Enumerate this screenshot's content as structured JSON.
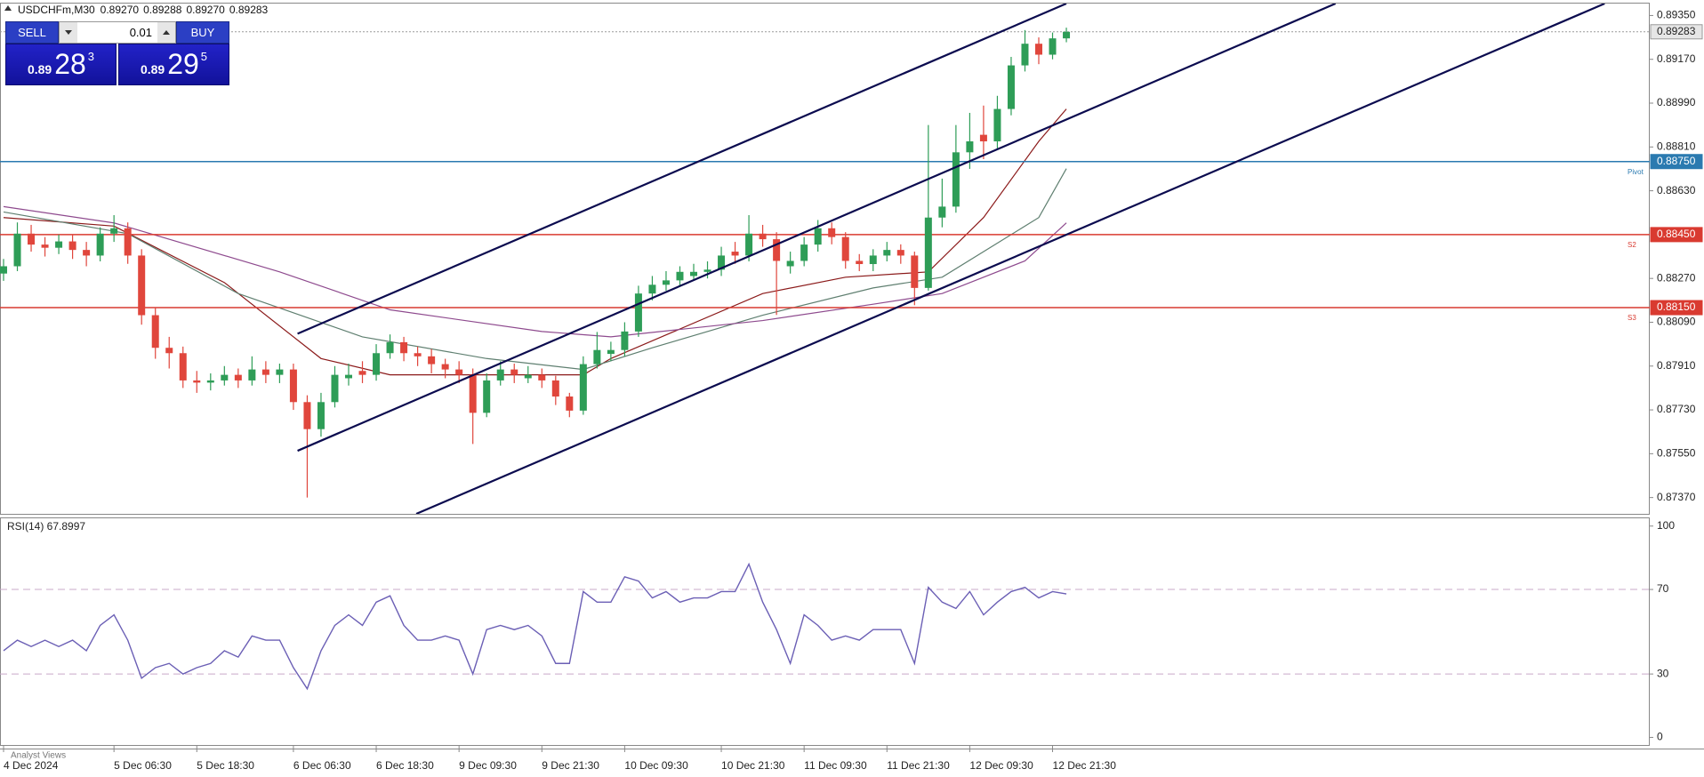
{
  "header": {
    "quote": [
      "0.89270",
      "0.89288",
      "0.89270",
      "0.89283"
    ],
    "trade": {
      "sell": "SELL",
      "buy": "BUY",
      "lot": "0.01",
      "bid": [
        "0.89",
        "28",
        "3"
      ],
      "ask": [
        "0.89",
        "29",
        "5"
      ]
    },
    "footer": "Analyst Views"
  },
  "chart_data": [
    {
      "type": "candlestick",
      "title": "USDCHFm,M30",
      "categories": [
        "4 Dec 2024",
        null,
        null,
        null,
        null,
        null,
        null,
        null,
        "5 Dec 06:30",
        null,
        null,
        null,
        null,
        null,
        "5 Dec 18:30",
        null,
        null,
        null,
        null,
        null,
        null,
        "6 Dec 06:30",
        null,
        null,
        null,
        null,
        null,
        "6 Dec 18:30",
        null,
        null,
        null,
        null,
        null,
        "9 Dec 09:30",
        null,
        null,
        null,
        null,
        null,
        "9 Dec 21:30",
        null,
        null,
        null,
        null,
        null,
        "10 Dec 09:30",
        null,
        null,
        null,
        null,
        null,
        null,
        "10 Dec 21:30",
        null,
        null,
        null,
        null,
        null,
        "11 Dec 09:30",
        null,
        null,
        null,
        null,
        null,
        "11 Dec 21:30",
        null,
        null,
        null,
        null,
        null,
        "12 Dec 09:30",
        null,
        null,
        null,
        null,
        null,
        "12 Dec 21:30",
        null
      ],
      "candles": [
        [
          0.8829,
          0.8835,
          0.8826,
          0.8832
        ],
        [
          0.8832,
          0.885,
          0.883,
          0.88454
        ],
        [
          0.88454,
          0.8849,
          0.8838,
          0.88409
        ],
        [
          0.88409,
          0.8844,
          0.8836,
          0.88396
        ],
        [
          0.88396,
          0.8845,
          0.8837,
          0.88422
        ],
        [
          0.88422,
          0.8845,
          0.8835,
          0.88387
        ],
        [
          0.88387,
          0.8842,
          0.8832,
          0.88364
        ],
        [
          0.88364,
          0.8848,
          0.8834,
          0.88454
        ],
        [
          0.88454,
          0.8853,
          0.8842,
          0.88476
        ],
        [
          0.88476,
          0.885,
          0.8833,
          0.88364
        ],
        [
          0.88364,
          0.8839,
          0.8808,
          0.88119
        ],
        [
          0.88119,
          0.8815,
          0.8794,
          0.87985
        ],
        [
          0.87985,
          0.8803,
          0.879,
          0.87963
        ],
        [
          0.87963,
          0.8799,
          0.8782,
          0.87851
        ],
        [
          0.87851,
          0.8789,
          0.878,
          0.87842
        ],
        [
          0.87842,
          0.8788,
          0.8781,
          0.87851
        ],
        [
          0.87851,
          0.8791,
          0.8783,
          0.87874
        ],
        [
          0.87874,
          0.879,
          0.8782,
          0.87851
        ],
        [
          0.87851,
          0.8795,
          0.8783,
          0.87896
        ],
        [
          0.87896,
          0.8793,
          0.8784,
          0.87874
        ],
        [
          0.87874,
          0.8792,
          0.8784,
          0.87896
        ],
        [
          0.87896,
          0.8792,
          0.8773,
          0.87762
        ],
        [
          0.87762,
          0.8779,
          0.8737,
          0.87651
        ],
        [
          0.87651,
          0.878,
          0.8762,
          0.87762
        ],
        [
          0.87762,
          0.8791,
          0.8774,
          0.87874
        ],
        [
          0.8786,
          0.8792,
          0.8783,
          0.87874
        ],
        [
          0.8789,
          0.8793,
          0.8784,
          0.87874
        ],
        [
          0.87874,
          0.88,
          0.8785,
          0.87963
        ],
        [
          0.87963,
          0.8804,
          0.8794,
          0.88008
        ],
        [
          0.88008,
          0.8803,
          0.8793,
          0.87963
        ],
        [
          0.87963,
          0.8799,
          0.8791,
          0.8795
        ],
        [
          0.8795,
          0.8798,
          0.8788,
          0.87918
        ],
        [
          0.87918,
          0.8794,
          0.8786,
          0.87896
        ],
        [
          0.87896,
          0.8793,
          0.8784,
          0.87874
        ],
        [
          0.87874,
          0.879,
          0.8759,
          0.87718
        ],
        [
          0.87718,
          0.8788,
          0.877,
          0.87851
        ],
        [
          0.87851,
          0.8793,
          0.8783,
          0.87896
        ],
        [
          0.87896,
          0.8792,
          0.8784,
          0.87874
        ],
        [
          0.8786,
          0.8791,
          0.8784,
          0.87874
        ],
        [
          0.87874,
          0.879,
          0.8782,
          0.87851
        ],
        [
          0.87851,
          0.8787,
          0.8775,
          0.87785
        ],
        [
          0.87785,
          0.878,
          0.877,
          0.87727
        ],
        [
          0.87727,
          0.8795,
          0.8771,
          0.87918
        ],
        [
          0.87918,
          0.8805,
          0.879,
          0.87976
        ],
        [
          0.8796,
          0.8801,
          0.8793,
          0.87976
        ],
        [
          0.87976,
          0.8809,
          0.8795,
          0.88052
        ],
        [
          0.88052,
          0.8824,
          0.8803,
          0.88208
        ],
        [
          0.88208,
          0.8828,
          0.8818,
          0.88244
        ],
        [
          0.88244,
          0.883,
          0.8822,
          0.88262
        ],
        [
          0.88262,
          0.8832,
          0.8824,
          0.88297
        ],
        [
          0.8828,
          0.8833,
          0.8826,
          0.88297
        ],
        [
          0.88297,
          0.8834,
          0.8827,
          0.88306
        ],
        [
          0.88306,
          0.884,
          0.8828,
          0.88364
        ],
        [
          0.8838,
          0.8842,
          0.8833,
          0.88364
        ],
        [
          0.88364,
          0.8853,
          0.8834,
          0.88454
        ],
        [
          0.88454,
          0.8849,
          0.884,
          0.88431
        ],
        [
          0.88431,
          0.8846,
          0.8812,
          0.88342
        ],
        [
          0.8832,
          0.8838,
          0.8829,
          0.88342
        ],
        [
          0.88342,
          0.8844,
          0.8832,
          0.88409
        ],
        [
          0.88409,
          0.8851,
          0.8838,
          0.88476
        ],
        [
          0.88476,
          0.885,
          0.8841,
          0.8844
        ],
        [
          0.8844,
          0.8846,
          0.8831,
          0.88342
        ],
        [
          0.88342,
          0.8837,
          0.883,
          0.88329
        ],
        [
          0.88329,
          0.8839,
          0.883,
          0.88364
        ],
        [
          0.88364,
          0.8842,
          0.8834,
          0.88387
        ],
        [
          0.88387,
          0.8841,
          0.8833,
          0.88364
        ],
        [
          0.88364,
          0.8838,
          0.8816,
          0.88231
        ],
        [
          0.88231,
          0.889,
          0.8822,
          0.8852
        ],
        [
          0.8852,
          0.8868,
          0.8848,
          0.88565
        ],
        [
          0.88565,
          0.889,
          0.8854,
          0.88788
        ],
        [
          0.88788,
          0.8895,
          0.8872,
          0.88833
        ],
        [
          0.8886,
          0.8898,
          0.8876,
          0.88833
        ],
        [
          0.88833,
          0.8902,
          0.888,
          0.88966
        ],
        [
          0.88966,
          0.8918,
          0.8894,
          0.89145
        ],
        [
          0.89145,
          0.8929,
          0.8912,
          0.89234
        ],
        [
          0.89234,
          0.8926,
          0.8915,
          0.89189
        ],
        [
          0.89189,
          0.8928,
          0.8917,
          0.89256
        ],
        [
          0.89256,
          0.893,
          0.8924,
          0.89283
        ]
      ],
      "up_color": "#2e9d57",
      "down_color": "#e0463c",
      "ylim": [
        0.87303,
        0.89399
      ],
      "yticks": [
        {
          "value": 0.8935,
          "label": "0.89350"
        },
        {
          "value": 0.8917,
          "label": "0.89170"
        },
        {
          "value": 0.8899,
          "label": "0.88990"
        },
        {
          "value": 0.8881,
          "label": "0.88810"
        },
        {
          "value": 0.8863,
          "label": "0.88630"
        },
        {
          "value": 0.8827,
          "label": "0.88270"
        },
        {
          "value": 0.8809,
          "label": "0.88090"
        },
        {
          "value": 0.8791,
          "label": "0.87910"
        },
        {
          "value": 0.8773,
          "label": "0.87730"
        },
        {
          "value": 0.8755,
          "label": "0.87550"
        },
        {
          "value": 0.8737,
          "label": "0.87370"
        }
      ],
      "moving_averages": [
        {
          "color": "#8b1a1a",
          "x": [
            0,
            8,
            16,
            23,
            28,
            42,
            44,
            55,
            61,
            67,
            71,
            75,
            77
          ],
          "values": [
            0.8852,
            0.88485,
            0.88253,
            0.87941,
            0.87874,
            0.87874,
            0.87941,
            0.88208,
            0.88275,
            0.88297,
            0.8852,
            0.88833,
            0.88966
          ]
        },
        {
          "color": "#5f7f70",
          "x": [
            0,
            9,
            17,
            26,
            35,
            42,
            47,
            55,
            63,
            68,
            75,
            77
          ],
          "values": [
            0.88543,
            0.88454,
            0.88208,
            0.8803,
            0.87941,
            0.87896,
            0.87985,
            0.88119,
            0.88231,
            0.88275,
            0.8852,
            0.88721
          ]
        },
        {
          "color": "#8e4a8e",
          "x": [
            0,
            8,
            20,
            28,
            39,
            44,
            55,
            63,
            68,
            74,
            77
          ],
          "values": [
            0.88565,
            0.88498,
            0.88297,
            0.88141,
            0.88052,
            0.8803,
            0.88097,
            0.88164,
            0.88208,
            0.88342,
            0.88498
          ]
        }
      ],
      "trendlines": [
        {
          "color": "#0b0b4f",
          "x": [
            21.3,
            77.0
          ],
          "values": [
            0.88043,
            0.89399
          ]
        },
        {
          "color": "#0b0b4f",
          "x": [
            21.3,
            96.5
          ],
          "values": [
            0.87562,
            0.89399
          ]
        },
        {
          "color": "#0b0b4f",
          "x": [
            29.9,
            116.0
          ],
          "values": [
            0.87303,
            0.89399
          ]
        }
      ],
      "levels": [
        {
          "value": 0.89283,
          "label": "0.89283",
          "color": "#9a9a9a"
        },
        {
          "value": 0.8875,
          "label": "0.88750",
          "name": "Pivot",
          "color": "#2a7ab0"
        },
        {
          "value": 0.8845,
          "label": "0.88450",
          "name": "S2",
          "color": "#d93a30"
        },
        {
          "value": 0.8815,
          "label": "0.88150",
          "name": "S3",
          "color": "#d93a30"
        }
      ]
    },
    {
      "type": "line",
      "title": "RSI(14) 67.8997",
      "series": [
        {
          "color": "#6b5fb5",
          "values": [
            41,
            46,
            43,
            46,
            43,
            46,
            41,
            53,
            58,
            46,
            28,
            33,
            35,
            30,
            33,
            35,
            41,
            38,
            48,
            46,
            46,
            33,
            23,
            41,
            53,
            58,
            53,
            64,
            67,
            53,
            46,
            46,
            48,
            46,
            30,
            51,
            53,
            51,
            53,
            48,
            35,
            35,
            69,
            64,
            64,
            76,
            74,
            66,
            69,
            64,
            66,
            66,
            69,
            69,
            82,
            64,
            51,
            35,
            58,
            53,
            46,
            48,
            46,
            51,
            51,
            51,
            35,
            71,
            64,
            61,
            69,
            58,
            64,
            69,
            71,
            66,
            69,
            67.8997
          ]
        }
      ],
      "ylim": [
        -3.6,
        104.1
      ],
      "yticks": [
        100,
        70,
        30,
        0
      ],
      "reference_lines": [
        70,
        30
      ]
    }
  ]
}
